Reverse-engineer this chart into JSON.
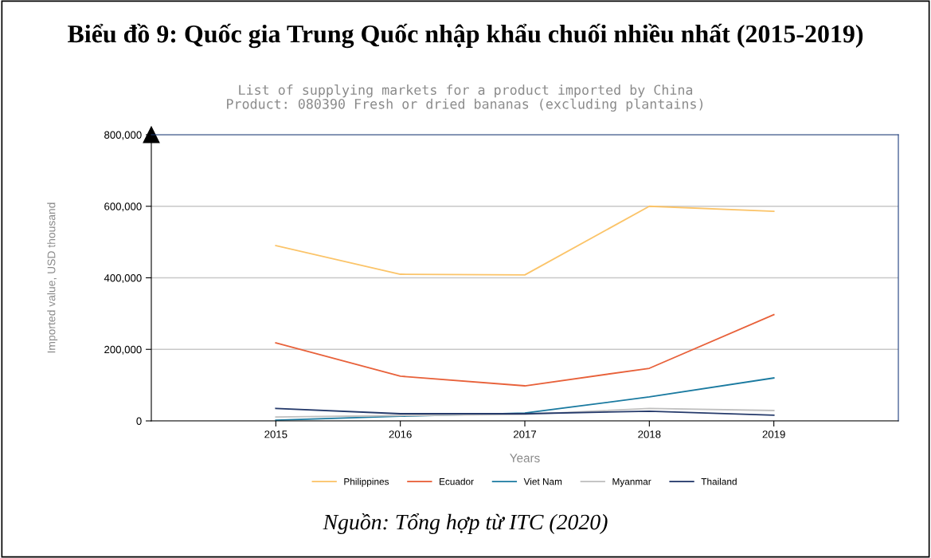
{
  "chart_data": {
    "type": "line",
    "title": "Biểu đồ 9: Quốc gia Trung Quốc nhập khẩu chuối nhiều nhất (2015-2019)",
    "subtitle": "List of supplying markets for a product imported by China\nProduct: 080390 Fresh or dried bananas (excluding plantains)",
    "xlabel": "Years",
    "ylabel": "Imported value, USD thousand",
    "x": [
      2015,
      2016,
      2017,
      2018,
      2019
    ],
    "series": [
      {
        "name": "Philippines",
        "color": "#fbc469",
        "values": [
          490000,
          410000,
          408000,
          600000,
          586000
        ]
      },
      {
        "name": "Ecuador",
        "color": "#e8613a",
        "values": [
          218000,
          125000,
          98000,
          147000,
          297000
        ]
      },
      {
        "name": "Viet Nam",
        "color": "#1a7aa0",
        "values": [
          2000,
          13000,
          22000,
          67000,
          120000
        ]
      },
      {
        "name": "Myanmar",
        "color": "#c0c0c0",
        "values": [
          11000,
          15000,
          18000,
          35000,
          29000
        ]
      },
      {
        "name": "Thailand",
        "color": "#253a6b",
        "values": [
          35000,
          20000,
          20000,
          27000,
          16000
        ]
      }
    ],
    "xlim": [
      2014,
      2020
    ],
    "xticks": [
      2015,
      2016,
      2017,
      2018,
      2019
    ],
    "ylim": [
      0,
      800000
    ],
    "yticks": [
      {
        "value": 0,
        "label": "0"
      },
      {
        "value": 200000,
        "label": "200,000"
      },
      {
        "value": 400000,
        "label": "400,000"
      },
      {
        "value": 600000,
        "label": "600,000"
      },
      {
        "value": 800000,
        "label": "800,000"
      }
    ],
    "grid": "y",
    "legend": "bottom",
    "marker": "none",
    "line_style": "solid",
    "annotations": [
      "Nguồn: Tổng hợp từ ITC (2020)"
    ]
  }
}
